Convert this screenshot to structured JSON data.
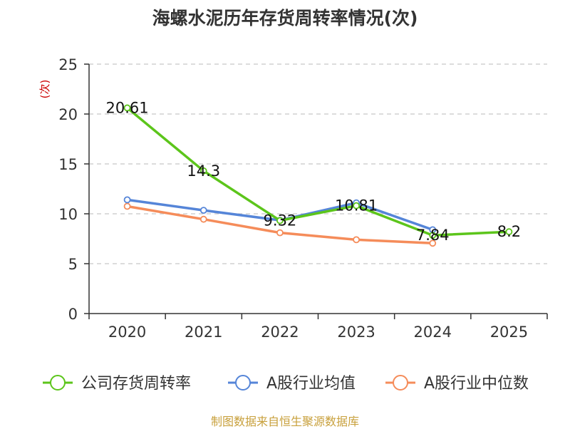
{
  "source": "制图数据来自恒生聚源数据库",
  "chart_data": {
    "type": "line",
    "title": "海螺水泥历年存货周转率情况(次)",
    "ylabel": "(次)",
    "categories": [
      "2020",
      "2021",
      "2022",
      "2023",
      "2024",
      "2025"
    ],
    "ylim": [
      0,
      25
    ],
    "yticks": [
      0,
      5,
      10,
      15,
      20,
      25
    ],
    "grid": true,
    "legend_position": "bottom",
    "series": [
      {
        "name": "公司存货周转率",
        "color": "#5cc51b",
        "values": [
          20.61,
          14.3,
          9.32,
          10.81,
          7.84,
          8.2
        ],
        "labels": [
          "20.61",
          "14.3",
          "9.32",
          "10.81",
          "7.84",
          "8.2"
        ]
      },
      {
        "name": "A股行业均值",
        "color": "#5585d8",
        "values": [
          11.4,
          10.35,
          9.35,
          11.1,
          8.4,
          null
        ]
      },
      {
        "name": "A股行业中位数",
        "color": "#f58c5a",
        "values": [
          10.75,
          9.45,
          8.1,
          7.4,
          7.05,
          null
        ]
      }
    ]
  }
}
